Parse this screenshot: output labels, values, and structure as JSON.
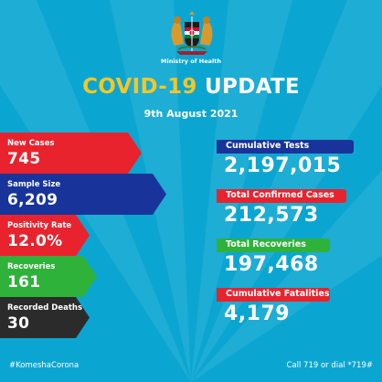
{
  "header": {
    "ministry": "Ministry of Health",
    "title_part1": "COVID-19",
    "title_part2": " UPDATE",
    "date": "9th August 2021"
  },
  "daily": [
    {
      "label": "New Cases",
      "value": "745",
      "color": "#e8232e"
    },
    {
      "label": "Sample Size",
      "value": "6,209",
      "color": "#18349a"
    },
    {
      "label": "Positivity Rate",
      "value": "12.0%",
      "color": "#e8232e"
    },
    {
      "label": "Recoveries",
      "value": "161",
      "color": "#2fb23a"
    },
    {
      "label": "Recorded Deaths",
      "value": "30",
      "color": "#2b2b2b"
    }
  ],
  "cumulative": [
    {
      "label": "Cumulative Tests",
      "value": "2,197,015",
      "color": "#18349a"
    },
    {
      "label": "Total Confirmed Cases",
      "value": "212,573",
      "color": "#e8232e"
    },
    {
      "label": "Total Recoveries",
      "value": "197,468",
      "color": "#2fb23a"
    },
    {
      "label": "Cumulative Fatalities",
      "value": "4,179",
      "color": "#e8232e"
    }
  ],
  "footer": {
    "hashtag": "#KomeshaCorona",
    "call": "Call 719 or dial *719#"
  },
  "colors": {
    "background": "#0aa6d1",
    "title_yellow": "#f7c624"
  }
}
